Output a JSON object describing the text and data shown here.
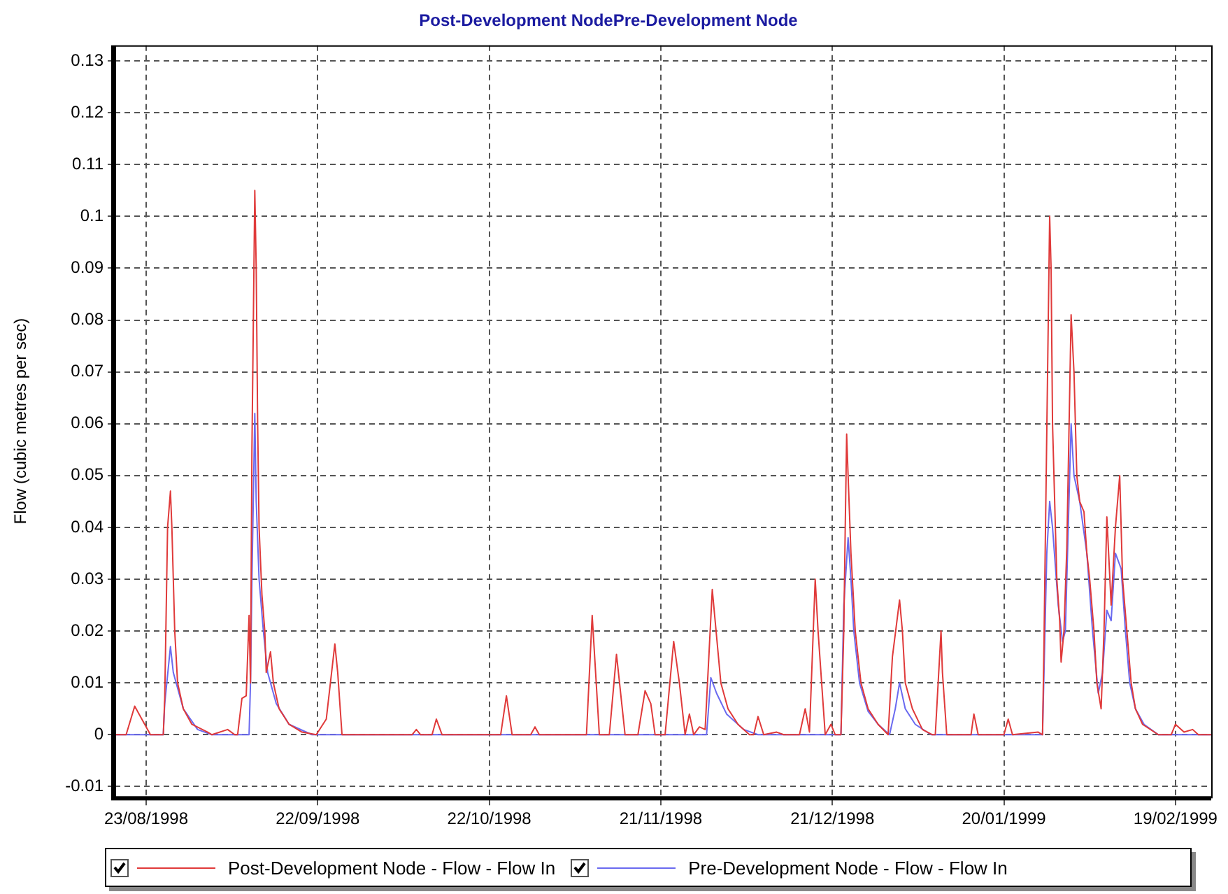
{
  "chart_data": {
    "type": "line",
    "title": "Post-Development NodePre-Development Node",
    "ylabel": "Flow (cubic metres per sec)",
    "xlim": [
      "1998-08-17T12:00",
      "1999-02-25T06:00"
    ],
    "xticks": [
      {
        "value": "1998-08-23",
        "label": "23/08/1998"
      },
      {
        "value": "1998-09-22",
        "label": "22/09/1998"
      },
      {
        "value": "1998-10-22",
        "label": "22/10/1998"
      },
      {
        "value": "1998-11-21",
        "label": "21/11/1998"
      },
      {
        "value": "1998-12-21",
        "label": "21/12/1998"
      },
      {
        "value": "1999-01-20",
        "label": "20/01/1999"
      },
      {
        "value": "1999-02-19",
        "label": "19/02/1999"
      }
    ],
    "ylim": [
      -0.012,
      0.133
    ],
    "yticks": [
      -0.01,
      0,
      0.01,
      0.02,
      0.03,
      0.04,
      0.05,
      0.06,
      0.07,
      0.08,
      0.09,
      0.1,
      0.11,
      0.12,
      0.13
    ],
    "grid": true,
    "legend": "bottom",
    "marker": "none",
    "series": [
      {
        "name": "Post-Development Node - Flow - Flow In",
        "color": "#e03a3a",
        "x": [
          "1998-08-17T12:00",
          "1998-08-19T12:00",
          "1998-08-21T00:00",
          "1998-08-23T18:00",
          "1998-08-26T00:00",
          "1998-08-26T06:00",
          "1998-08-26T18:00",
          "1998-08-27T06:00",
          "1998-08-27T12:00",
          "1998-08-28T00:00",
          "1998-08-28T12:00",
          "1998-08-29T12:00",
          "1998-08-31T00:00",
          "1998-09-02T18:00",
          "1998-09-03T12:00",
          "1998-09-06T06:00",
          "1998-09-07T12:00",
          "1998-09-08T00:00",
          "1998-09-08T18:00",
          "1998-09-09T12:00",
          "1998-09-10T00:00",
          "1998-09-10T06:00",
          "1998-09-10T12:00",
          "1998-09-11T00:00",
          "1998-09-11T06:00",
          "1998-09-11T12:00",
          "1998-09-11T18:00",
          "1998-09-12T06:00",
          "1998-09-12T18:00",
          "1998-09-13T00:00",
          "1998-09-13T18:00",
          "1998-09-14T06:00",
          "1998-09-15T06:00",
          "1998-09-17T00:00",
          "1998-09-19T06:00",
          "1998-09-21T18:00",
          "1998-09-23T12:00",
          "1998-09-25T00:00",
          "1998-09-25T12:00",
          "1998-09-26T06:00",
          "1998-10-08T12:00",
          "1998-10-09T06:00",
          "1998-10-10T00:00",
          "1998-10-12T00:00",
          "1998-10-12T18:00",
          "1998-10-13T18:00",
          "1998-10-24T00:00",
          "1998-10-25T00:00",
          "1998-10-26T00:00",
          "1998-10-29T06:00",
          "1998-10-30T00:00",
          "1998-10-30T18:00",
          "1998-11-08T00:00",
          "1998-11-09T00:00",
          "1998-11-10T06:00",
          "1998-11-12T00:00",
          "1998-11-13T06:00",
          "1998-11-14T18:00",
          "1998-11-17T00:00",
          "1998-11-18T06:00",
          "1998-11-19T06:00",
          "1998-11-20T00:00",
          "1998-11-21T18:00",
          "1998-11-23T06:00",
          "1998-11-24T06:00",
          "1998-11-25T06:00",
          "1998-11-26T00:00",
          "1998-11-26T18:00",
          "1998-11-27T18:00",
          "1998-11-28T18:00",
          "1998-11-30T00:00",
          "1998-11-30T18:00",
          "1998-12-01T12:00",
          "1998-12-02T18:00",
          "1998-12-04T12:00",
          "1998-12-06T12:00",
          "1998-12-07T06:00",
          "1998-12-08T00:00",
          "1998-12-09T00:00",
          "1998-12-11T06:00",
          "1998-12-12T12:00",
          "1998-12-15T06:00",
          "1998-12-16T06:00",
          "1998-12-17T00:00",
          "1998-12-18T00:00",
          "1998-12-18T12:00",
          "1998-12-19T18:00",
          "1998-12-20T18:00",
          "1998-12-21T12:00",
          "1998-12-22T12:00",
          "1998-12-23T00:00",
          "1998-12-23T06:00",
          "1998-12-23T12:00",
          "1998-12-23T18:00",
          "1998-12-24T06:00",
          "1998-12-25T00:00",
          "1998-12-26T00:00",
          "1998-12-27T06:00",
          "1998-12-29T00:00",
          "1998-12-30T18:00",
          "1998-12-31T12:00",
          "1999-01-01T18:00",
          "1999-01-02T06:00",
          "1999-01-02T18:00",
          "1999-01-04T00:00",
          "1999-01-05T18:00",
          "1999-01-07T12:00",
          "1999-01-08T00:00",
          "1999-01-09T00:00",
          "1999-01-09T06:00",
          "1999-01-10T00:00",
          "1999-01-14T06:00",
          "1999-01-14T18:00",
          "1999-01-15T12:00",
          "1999-01-20T00:00",
          "1999-01-20T18:00",
          "1999-01-21T12:00",
          "1999-01-26T00:00",
          "1999-01-26T18:00",
          "1999-01-27T00:00",
          "1999-01-27T06:00",
          "1999-01-28T00:00",
          "1999-01-28T06:00",
          "1999-01-28T12:00",
          "1999-01-28T18:00",
          "1999-01-29T06:00",
          "1999-01-29T18:00",
          "1999-01-30T00:00",
          "1999-01-30T12:00",
          "1999-01-31T00:00",
          "1999-01-31T18:00",
          "1999-02-01T06:00",
          "1999-02-01T18:00",
          "1999-02-02T06:00",
          "1999-02-03T00:00",
          "1999-02-03T12:00",
          "1999-02-04T00:00",
          "1999-02-04T18:00",
          "1999-02-05T06:00",
          "1999-02-06T00:00",
          "1999-02-06T12:00",
          "1999-02-07T00:00",
          "1999-02-07T18:00",
          "1999-02-08T12:00",
          "1999-02-09T06:00",
          "1999-02-09T18:00",
          "1999-02-10T12:00",
          "1999-02-11T06:00",
          "1999-02-12T00:00",
          "1999-02-13T06:00",
          "1999-02-16T00:00",
          "1999-02-18T06:00",
          "1999-02-19T00:00",
          "1999-02-20T12:00",
          "1999-02-22T00:00",
          "1999-02-23T00:00",
          "1999-02-25T06:00"
        ],
        "values": [
          0,
          0,
          0.0055,
          0,
          0,
          0.007,
          0.04,
          0.047,
          0.04,
          0.02,
          0.01,
          0.005,
          0.002,
          0.0005,
          0,
          0.001,
          0,
          0,
          0.007,
          0.0075,
          0.023,
          0.01,
          0.055,
          0.105,
          0.09,
          0.06,
          0.04,
          0.027,
          0.02,
          0.012,
          0.016,
          0.01,
          0.005,
          0.002,
          0.0005,
          0,
          0.003,
          0.0175,
          0.012,
          0,
          0,
          0.001,
          0,
          0,
          0.003,
          0,
          0,
          0.0075,
          0,
          0,
          0.0015,
          0,
          0,
          0.023,
          0,
          0,
          0.0155,
          0,
          0,
          0.0085,
          0.006,
          0,
          0,
          0.018,
          0.01,
          0,
          0.004,
          0,
          0.0015,
          0.001,
          0.028,
          0.019,
          0.01,
          0.005,
          0.002,
          0,
          0,
          0.0035,
          0,
          0.0005,
          0,
          0,
          0.005,
          0.0005,
          0.03,
          0.02,
          0,
          0.002,
          0,
          0,
          0.02,
          0.04,
          0.058,
          0.05,
          0.035,
          0.02,
          0.01,
          0.005,
          0.002,
          0,
          0.015,
          0.026,
          0.02,
          0.01,
          0.005,
          0.001,
          0,
          0,
          0.02,
          0.012,
          0,
          0,
          0.004,
          0,
          0,
          0.003,
          0,
          0.0005,
          0,
          0.017,
          0.038,
          0.1,
          0.09,
          0.06,
          0.05,
          0.03,
          0.022,
          0.014,
          0.02,
          0.036,
          0.081,
          0.07,
          0.05,
          0.045,
          0.043,
          0.035,
          0.03,
          0.02,
          0.01,
          0.005,
          0.02,
          0.042,
          0.025,
          0.04,
          0.05,
          0.03,
          0.02,
          0.01,
          0.005,
          0.002,
          0,
          0,
          0.002,
          0.0005,
          0.001,
          0,
          0
        ]
      },
      {
        "name": "Pre-Development Node - Flow - Flow In",
        "color": "#6a6af0",
        "x": [
          "1998-08-17T12:00",
          "1998-08-26T00:00",
          "1998-08-26T06:00",
          "1998-08-27T06:00",
          "1998-08-27T18:00",
          "1998-08-29T12:00",
          "1998-09-01T00:00",
          "1998-09-03T12:00",
          "1998-09-10T00:00",
          "1998-09-10T06:00",
          "1998-09-10T12:00",
          "1998-09-11T00:00",
          "1998-09-11T06:00",
          "1998-09-11T18:00",
          "1998-09-12T12:00",
          "1998-09-13T06:00",
          "1998-09-14T18:00",
          "1998-09-17T00:00",
          "1998-09-21T00:00",
          "1998-11-29T00:00",
          "1998-11-29T18:00",
          "1998-11-30T18:00",
          "1998-12-02T12:00",
          "1998-12-05T12:00",
          "1998-12-08T00:00",
          "1998-12-22T12:00",
          "1998-12-23T00:00",
          "1998-12-23T18:00",
          "1998-12-24T06:00",
          "1998-12-24T18:00",
          "1998-12-25T18:00",
          "1998-12-27T06:00",
          "1998-12-29T00:00",
          "1998-12-31T00:00",
          "1999-01-01T00:00",
          "1999-01-01T18:00",
          "1999-01-02T18:00",
          "1999-01-04T12:00",
          "1999-01-07T06:00",
          "1999-01-26T18:00",
          "1999-01-27T12:00",
          "1999-01-28T00:00",
          "1999-01-28T12:00",
          "1999-01-29T12:00",
          "1999-01-30T06:00",
          "1999-01-30T18:00",
          "1999-01-31T12:00",
          "1999-01-31T18:00",
          "1999-02-01T06:00",
          "1999-02-02T06:00",
          "1999-02-03T12:00",
          "1999-02-04T12:00",
          "1999-02-05T12:00",
          "1999-02-06T06:00",
          "1999-02-07T00:00",
          "1999-02-07T18:00",
          "1999-02-08T12:00",
          "1999-02-09T12:00",
          "1999-02-10T06:00",
          "1999-02-11T00:00",
          "1999-02-12T00:00",
          "1999-02-13T12:00",
          "1999-02-16T00:00",
          "1999-02-25T06:00"
        ],
        "values": [
          0,
          0,
          0.006,
          0.017,
          0.012,
          0.005,
          0.001,
          0,
          0,
          0.01,
          0.03,
          0.062,
          0.045,
          0.03,
          0.02,
          0.012,
          0.006,
          0.002,
          0,
          0,
          0.011,
          0.008,
          0.004,
          0.001,
          0,
          0,
          0.025,
          0.038,
          0.03,
          0.02,
          0.01,
          0.0045,
          0.002,
          0,
          0.005,
          0.01,
          0.005,
          0.002,
          0,
          0,
          0.035,
          0.045,
          0.04,
          0.025,
          0.018,
          0.02,
          0.05,
          0.06,
          0.05,
          0.045,
          0.035,
          0.02,
          0.008,
          0.012,
          0.024,
          0.022,
          0.035,
          0.032,
          0.02,
          0.01,
          0.005,
          0.002,
          0,
          0
        ]
      }
    ]
  }
}
